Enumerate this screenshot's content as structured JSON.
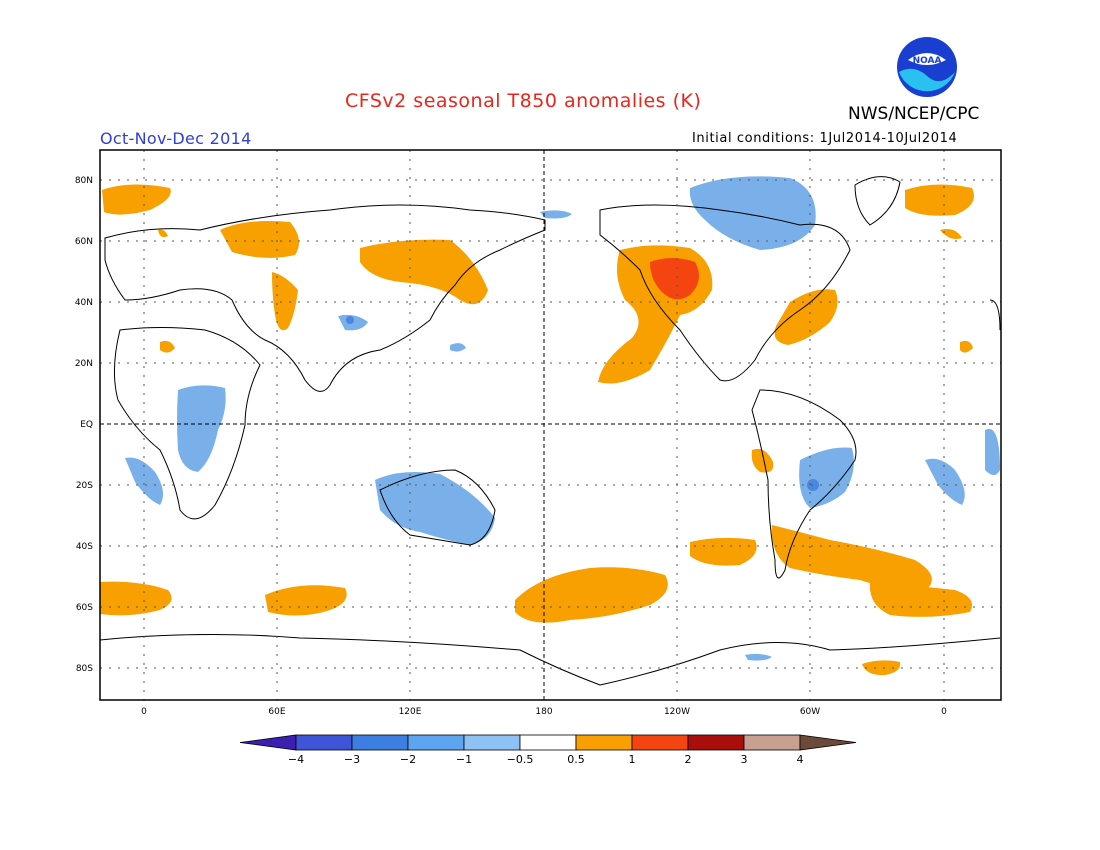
{
  "header": {
    "title": "CFSv2 seasonal T850 anomalies (K)",
    "period": "Oct-Nov-Dec 2014",
    "initial_conditions": "Initial conditions: 1Jul2014-10Jul2014",
    "agency": "NWS/NCEP/CPC",
    "logo_text": "NOAA"
  },
  "map": {
    "lat_labels": [
      "80N",
      "60N",
      "40N",
      "20N",
      "EQ",
      "20S",
      "40S",
      "60S",
      "80S"
    ],
    "lon_labels": [
      "0",
      "60E",
      "120E",
      "180",
      "120W",
      "60W",
      "0"
    ]
  },
  "colorbar": {
    "labels": [
      "−4",
      "−3",
      "−2",
      "−1",
      "−0.5",
      "0.5",
      "1",
      "2",
      "3",
      "4"
    ],
    "colors": [
      "#3a1fb0",
      "#3f55d8",
      "#3c7fe0",
      "#5fa4ee",
      "#8fc2f4",
      "#ffffff",
      "#f8a000",
      "#f44511",
      "#a80e0a",
      "#c8a090",
      "#6b4a3a"
    ]
  },
  "palette": {
    "warm": "#f8a000",
    "warm_strong": "#f44511",
    "cool": "#7ab0ea",
    "cool_strong": "#4b86df",
    "title_color": "#e8261c",
    "period_color": "#2f3fd9"
  }
}
